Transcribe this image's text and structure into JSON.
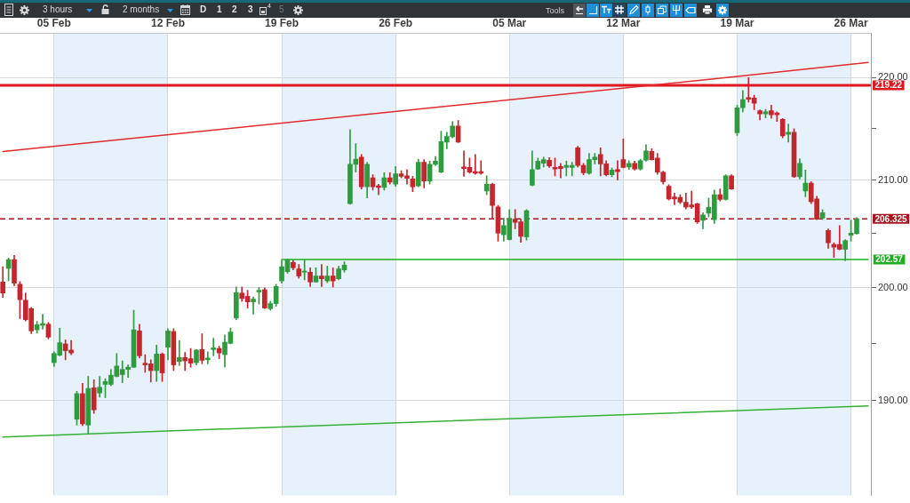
{
  "chart_data": {
    "type": "candlestick",
    "categories": [
      null,
      null,
      null,
      null,
      null,
      null,
      null,
      null,
      null,
      "05 Feb",
      null,
      null,
      null,
      null,
      null,
      null,
      null,
      null,
      null,
      null,
      null,
      null,
      null,
      null,
      null,
      null,
      null,
      null,
      null,
      "12 Feb",
      null,
      null,
      null,
      null,
      null,
      null,
      null,
      null,
      null,
      null,
      null,
      null,
      null,
      null,
      null,
      null,
      null,
      null,
      null,
      "19 Feb",
      null,
      null,
      null,
      null,
      null,
      null,
      null,
      null,
      null,
      null,
      null,
      null,
      null,
      null,
      null,
      null,
      null,
      null,
      null,
      "26 Feb",
      null,
      null,
      null,
      null,
      null,
      null,
      null,
      null,
      null,
      null,
      null,
      null,
      null,
      null,
      null,
      null,
      null,
      null,
      null,
      "05 Mar",
      null,
      null,
      null,
      null,
      null,
      null,
      null,
      null,
      null,
      null,
      null,
      null,
      null,
      null,
      null,
      null,
      null,
      null,
      null,
      "12 Mar",
      null,
      null,
      null,
      null,
      null,
      null,
      null,
      null,
      null,
      null,
      null,
      null,
      null,
      null,
      null,
      null,
      null,
      null,
      null,
      "19 Mar",
      null,
      null,
      null,
      null,
      null,
      null,
      null,
      null,
      null,
      null,
      null,
      null,
      null,
      null,
      null,
      null,
      null,
      null,
      null,
      "26 Mar",
      null,
      null,
      null
    ],
    "ohlc": [
      [
        200.5,
        201.9,
        199.1,
        199.5
      ],
      [
        201.75,
        202.7,
        200.6,
        202.55
      ],
      [
        202.55,
        202.95,
        200.15,
        200.4
      ],
      [
        200.3,
        200.55,
        197.2,
        198.9
      ],
      [
        198.85,
        199.5,
        197.0,
        197.1
      ],
      [
        198.1,
        198.2,
        195.85,
        196.1
      ],
      [
        196.2,
        196.95,
        195.9,
        196.65
      ],
      [
        196.6,
        197.6,
        196.25,
        196.75
      ],
      [
        196.7,
        196.85,
        195.4,
        195.55
      ],
      [
        193.3,
        194.25,
        192.95,
        194.1
      ],
      [
        193.95,
        196.35,
        193.9,
        195.05
      ],
      [
        194.95,
        195.3,
        193.55,
        194.35
      ],
      [
        194.4,
        195.25,
        194.0,
        194.15
      ],
      [
        188.4,
        190.8,
        187.9,
        190.6
      ],
      [
        190.6,
        191.5,
        187.85,
        188.0
      ],
      [
        187.9,
        192.1,
        187.15,
        191.05
      ],
      [
        191.1,
        191.8,
        188.9,
        189.2
      ],
      [
        190.65,
        192.1,
        190.3,
        191.15
      ],
      [
        191.4,
        191.9,
        190.25,
        191.65
      ],
      [
        191.4,
        192.7,
        191.3,
        192.2
      ],
      [
        192.1,
        194.1,
        192.05,
        193.0
      ],
      [
        192.25,
        193.45,
        191.55,
        192.7
      ],
      [
        192.7,
        193.1,
        192.0,
        192.9
      ],
      [
        192.9,
        197.95,
        192.85,
        196.2
      ],
      [
        196.1,
        196.7,
        193.7,
        193.9
      ],
      [
        193.25,
        194.0,
        192.45,
        193.1
      ],
      [
        193.2,
        193.55,
        191.6,
        192.6
      ],
      [
        192.6,
        194.85,
        191.65,
        194.05
      ],
      [
        194.05,
        194.15,
        191.65,
        192.4
      ],
      [
        194.65,
        196.3,
        193.55,
        196.1
      ],
      [
        196.05,
        196.3,
        192.6,
        193.1
      ],
      [
        193.4,
        195.25,
        193.05,
        193.75
      ],
      [
        193.75,
        194.2,
        192.6,
        193.45
      ],
      [
        193.65,
        194.55,
        192.9,
        193.25
      ],
      [
        193.3,
        194.45,
        193.1,
        194.4
      ],
      [
        194.45,
        195.85,
        193.2,
        193.5
      ],
      [
        193.55,
        194.25,
        193.2,
        193.7
      ],
      [
        194.45,
        195.45,
        193.9,
        194.6
      ],
      [
        194.55,
        194.75,
        193.65,
        194.15
      ],
      [
        194.0,
        195.75,
        192.9,
        195.1
      ],
      [
        195.0,
        196.35,
        194.95,
        196.0
      ],
      [
        197.25,
        200.05,
        197.1,
        199.55
      ],
      [
        199.5,
        200.05,
        198.75,
        199.0
      ],
      [
        199.2,
        199.75,
        198.15,
        198.7
      ],
      [
        198.7,
        199.15,
        197.6,
        198.95
      ],
      [
        199.6,
        200.0,
        198.5,
        199.75
      ],
      [
        199.8,
        199.95,
        198.1,
        198.15
      ],
      [
        198.1,
        198.75,
        197.95,
        198.55
      ],
      [
        198.55,
        200.3,
        198.3,
        200.1
      ],
      [
        200.6,
        202.5,
        200.4,
        201.9
      ],
      [
        201.45,
        202.6,
        201.3,
        202.5
      ],
      [
        202.3,
        202.5,
        201.6,
        201.8
      ],
      [
        201.7,
        202.1,
        200.85,
        201.05
      ],
      [
        201.4,
        202.5,
        200.7,
        201.5
      ],
      [
        201.4,
        201.8,
        200.1,
        200.5
      ],
      [
        200.5,
        201.8,
        200.5,
        201.05
      ],
      [
        201.05,
        202.1,
        200.1,
        200.8
      ],
      [
        200.6,
        201.95,
        200.45,
        201.05
      ],
      [
        201.05,
        201.8,
        200.05,
        200.6
      ],
      [
        200.8,
        201.95,
        200.7,
        201.7
      ],
      [
        201.6,
        202.35,
        201.4,
        202.05
      ],
      [
        207.75,
        214.85,
        207.7,
        211.5
      ],
      [
        211.5,
        213.5,
        210.75,
        212.0
      ],
      [
        212.2,
        212.45,
        209.15,
        209.35
      ],
      [
        209.35,
        211.7,
        208.3,
        211.5
      ],
      [
        210.2,
        210.5,
        209.05,
        209.35
      ],
      [
        209.45,
        209.6,
        208.6,
        209.3
      ],
      [
        209.3,
        210.7,
        209.05,
        210.2
      ],
      [
        210.2,
        210.7,
        209.6,
        209.8
      ],
      [
        209.6,
        211.3,
        209.4,
        210.6
      ],
      [
        210.6,
        210.9,
        210.2,
        210.35
      ],
      [
        210.4,
        211.0,
        209.6,
        210.15
      ],
      [
        210.1,
        210.35,
        208.9,
        209.35
      ],
      [
        209.45,
        212.0,
        209.35,
        211.7
      ],
      [
        211.7,
        211.95,
        209.25,
        209.9
      ],
      [
        209.9,
        211.8,
        209.6,
        211.5
      ],
      [
        211.5,
        212.25,
        211.4,
        211.8
      ],
      [
        210.75,
        214.7,
        210.7,
        213.7
      ],
      [
        213.65,
        214.6,
        213.0,
        214.2
      ],
      [
        214.15,
        215.65,
        214.05,
        215.2
      ],
      [
        215.2,
        215.75,
        213.6,
        213.65
      ],
      [
        211.25,
        212.8,
        210.35,
        211.1
      ],
      [
        211.2,
        212.1,
        210.65,
        210.75
      ],
      [
        210.8,
        212.45,
        210.55,
        210.65
      ],
      [
        210.8,
        211.85,
        210.55,
        210.65
      ],
      [
        208.95,
        210.4,
        208.6,
        209.6
      ],
      [
        209.6,
        209.7,
        206.3,
        207.6
      ],
      [
        207.45,
        207.6,
        204.25,
        205.0
      ],
      [
        204.85,
        206.4,
        204.25,
        205.7
      ],
      [
        204.4,
        207.2,
        204.35,
        206.35
      ],
      [
        206.3,
        207.2,
        205.4,
        206.0
      ],
      [
        206.05,
        206.3,
        204.15,
        204.7
      ],
      [
        204.65,
        207.2,
        204.35,
        207.1
      ],
      [
        209.5,
        212.8,
        209.45,
        211.0
      ],
      [
        211.05,
        212.1,
        211.0,
        211.8
      ],
      [
        211.6,
        212.2,
        211.25,
        211.95
      ],
      [
        211.9,
        212.15,
        211.2,
        211.35
      ],
      [
        211.2,
        212.1,
        210.4,
        211.05
      ],
      [
        211.3,
        211.6,
        210.2,
        211.1
      ],
      [
        211.2,
        211.8,
        210.4,
        211.4
      ],
      [
        211.2,
        211.7,
        210.4,
        211.4
      ],
      [
        213.1,
        213.25,
        211.25,
        211.4
      ],
      [
        211.4,
        211.6,
        210.5,
        210.7
      ],
      [
        210.65,
        212.55,
        210.55,
        211.95
      ],
      [
        211.95,
        212.55,
        211.55,
        212.2
      ],
      [
        212.45,
        213.1,
        210.4,
        211.55
      ],
      [
        211.55,
        211.85,
        210.4,
        210.5
      ],
      [
        210.5,
        211.15,
        210.3,
        210.95
      ],
      [
        211.0,
        211.85,
        210.0,
        210.8
      ],
      [
        211.95,
        213.95,
        211.15,
        211.2
      ],
      [
        211.25,
        211.85,
        211.0,
        211.6
      ],
      [
        211.6,
        211.8,
        210.95,
        211.05
      ],
      [
        211.05,
        212.0,
        210.95,
        211.85
      ],
      [
        211.9,
        213.4,
        211.8,
        212.8
      ],
      [
        212.75,
        213.0,
        211.9,
        211.95
      ],
      [
        212.1,
        212.55,
        210.55,
        210.75
      ],
      [
        210.75,
        210.85,
        209.6,
        209.85
      ],
      [
        209.4,
        209.55,
        208.1,
        208.2
      ],
      [
        208.4,
        208.75,
        207.65,
        208.2
      ],
      [
        208.35,
        208.6,
        207.75,
        207.9
      ],
      [
        207.9,
        208.75,
        207.25,
        207.45
      ],
      [
        207.65,
        208.95,
        207.3,
        207.45
      ],
      [
        207.75,
        207.8,
        205.9,
        206.05
      ],
      [
        206.2,
        206.9,
        205.4,
        206.7
      ],
      [
        206.85,
        208.3,
        206.5,
        207.4
      ],
      [
        206.25,
        209.05,
        205.9,
        208.6
      ],
      [
        208.6,
        209.15,
        208.0,
        208.15
      ],
      [
        208.15,
        210.5,
        208.1,
        210.4
      ],
      [
        210.4,
        210.5,
        209.1,
        209.15
      ],
      [
        214.55,
        217.25,
        214.3,
        217.0
      ],
      [
        217.0,
        218.7,
        216.6,
        217.8
      ],
      [
        218.0,
        220.0,
        217.55,
        217.85
      ],
      [
        217.95,
        218.25,
        216.8,
        217.45
      ],
      [
        216.7,
        216.8,
        215.8,
        216.4
      ],
      [
        216.4,
        216.85,
        216.0,
        216.6
      ],
      [
        216.7,
        217.25,
        215.95,
        216.3
      ],
      [
        216.5,
        216.6,
        215.65,
        216.3
      ],
      [
        215.85,
        215.95,
        214.05,
        214.25
      ],
      [
        214.4,
        215.4,
        213.65,
        214.6
      ],
      [
        214.6,
        214.95,
        210.25,
        210.3
      ],
      [
        210.3,
        212.05,
        210.1,
        211.6
      ],
      [
        208.95,
        210.95,
        208.4,
        209.7
      ],
      [
        209.7,
        209.85,
        207.75,
        207.95
      ],
      [
        208.2,
        208.45,
        206.25,
        206.3
      ],
      [
        206.4,
        207.2,
        206.25,
        206.9
      ],
      [
        205.25,
        205.4,
        203.6,
        204.1
      ],
      [
        203.95,
        204.1,
        202.75,
        203.7
      ],
      [
        203.95,
        205.7,
        203.45,
        203.5
      ],
      [
        203.5,
        204.4,
        202.45,
        204.3
      ],
      [
        204.8,
        206.2,
        204.25,
        205.0
      ],
      [
        204.95,
        206.45,
        204.9,
        206.325
      ],
      null,
      null
    ],
    "colors": [
      "#c3262d",
      "#2e9b3f",
      "#c3262d",
      "#c3262d",
      "#c3262d",
      "#c3262d",
      "#2e9b3f",
      "#2e9b3f",
      "#c3262d",
      "#2e9b3f",
      "#2e9b3f",
      "#c3262d",
      "#c3262d",
      "#2e9b3f",
      "#c3262d",
      "#2e9b3f",
      "#c3262d",
      "#2e9b3f",
      "#2e9b3f",
      "#2e9b3f",
      "#2e9b3f",
      "#2e9b3f",
      "#2e9b3f",
      "#2e9b3f",
      "#c3262d",
      "#c3262d",
      "#c3262d",
      "#2e9b3f",
      "#c3262d",
      "#2e9b3f",
      "#c3262d",
      "#2e9b3f",
      "#c3262d",
      "#c3262d",
      "#2e9b3f",
      "#c3262d",
      "#2e9b3f",
      "#2e9b3f",
      "#c3262d",
      "#2e9b3f",
      "#2e9b3f",
      "#2e9b3f",
      "#c3262d",
      "#c3262d",
      "#2e9b3f",
      "#2e9b3f",
      "#c3262d",
      "#2e9b3f",
      "#2e9b3f",
      "#2e9b3f",
      "#2e9b3f",
      "#c3262d",
      "#c3262d",
      "#2e9b3f",
      "#c3262d",
      "#2e9b3f",
      "#c3262d",
      "#2e9b3f",
      "#c3262d",
      "#2e9b3f",
      "#2e9b3f",
      "#2e9b3f",
      "#2e9b3f",
      "#c3262d",
      "#2e9b3f",
      "#c3262d",
      "#c3262d",
      "#2e9b3f",
      "#c3262d",
      "#2e9b3f",
      "#c3262d",
      "#c3262d",
      "#c3262d",
      "#2e9b3f",
      "#c3262d",
      "#2e9b3f",
      "#2e9b3f",
      "#2e9b3f",
      "#2e9b3f",
      "#2e9b3f",
      "#c3262d",
      "#c3262d",
      "#c3262d",
      "#c3262d",
      "#c3262d",
      "#2e9b3f",
      "#c3262d",
      "#c3262d",
      "#2e9b3f",
      "#2e9b3f",
      "#c3262d",
      "#c3262d",
      "#2e9b3f",
      "#2e9b3f",
      "#2e9b3f",
      "#2e9b3f",
      "#c3262d",
      "#c3262d",
      "#c3262d",
      "#2e9b3f",
      "#2e9b3f",
      "#c3262d",
      "#c3262d",
      "#2e9b3f",
      "#2e9b3f",
      "#c3262d",
      "#c3262d",
      "#2e9b3f",
      "#c3262d",
      "#c3262d",
      "#2e9b3f",
      "#c3262d",
      "#2e9b3f",
      "#2e9b3f",
      "#c3262d",
      "#c3262d",
      "#c3262d",
      "#c3262d",
      "#c3262d",
      "#c3262d",
      "#c3262d",
      "#c3262d",
      "#c3262d",
      "#2e9b3f",
      "#2e9b3f",
      "#2e9b3f",
      "#c3262d",
      "#2e9b3f",
      "#c3262d",
      "#2e9b3f",
      "#2e9b3f",
      "#c3262d",
      "#c3262d",
      "#c3262d",
      "#2e9b3f",
      "#c3262d",
      "#c3262d",
      "#c3262d",
      "#2e9b3f",
      "#c3262d",
      "#2e9b3f",
      "#2e9b3f",
      "#c3262d",
      "#c3262d",
      "#2e9b3f",
      "#c3262d",
      "#c3262d",
      "#c3262d",
      "#2e9b3f",
      "#2e9b3f",
      "#2e9b3f",
      null,
      null
    ],
    "series": [
      {
        "type": "line",
        "color": "#e32b2b",
        "values": [
          212.73,
          null,
          null,
          null,
          null,
          null,
          null,
          null,
          null,
          null,
          null,
          null,
          null,
          null,
          null,
          null,
          null,
          null,
          null,
          null,
          null,
          null,
          null,
          null,
          null,
          null,
          null,
          null,
          null,
          null,
          null,
          null,
          null,
          null,
          null,
          null,
          null,
          null,
          null,
          null,
          null,
          null,
          null,
          null,
          null,
          null,
          null,
          null,
          null,
          null,
          null,
          null,
          null,
          null,
          null,
          null,
          null,
          null,
          null,
          null,
          null,
          null,
          null,
          null,
          null,
          null,
          null,
          null,
          null,
          null,
          null,
          null,
          null,
          null,
          null,
          null,
          null,
          null,
          null,
          null,
          null,
          null,
          null,
          null,
          null,
          null,
          null,
          null,
          null,
          null,
          null,
          null,
          null,
          null,
          null,
          null,
          null,
          null,
          null,
          null,
          null,
          null,
          null,
          null,
          null,
          null,
          null,
          null,
          null,
          null,
          null,
          null,
          null,
          null,
          null,
          null,
          null,
          null,
          null,
          null,
          null,
          null,
          null,
          null,
          null,
          null,
          null,
          null,
          null,
          220.1,
          null,
          null,
          null,
          null,
          null,
          null,
          null,
          null,
          null,
          null,
          null,
          null,
          null,
          null,
          null,
          null,
          null,
          null,
          null,
          null,
          null,
          null,
          221.5
        ]
      },
      {
        "type": "line",
        "color": "#33b233",
        "values": [
          186.88,
          null,
          null,
          null,
          null,
          null,
          null,
          null,
          null,
          null,
          null,
          null,
          null,
          null,
          null,
          187.15,
          null,
          null,
          null,
          null,
          null,
          null,
          null,
          null,
          null,
          null,
          null,
          null,
          null,
          null,
          null,
          null,
          null,
          null,
          null,
          null,
          null,
          null,
          null,
          null,
          null,
          null,
          null,
          null,
          null,
          null,
          null,
          null,
          null,
          null,
          null,
          null,
          null,
          null,
          null,
          null,
          null,
          null,
          null,
          null,
          null,
          null,
          null,
          null,
          null,
          null,
          null,
          null,
          null,
          null,
          null,
          null,
          null,
          null,
          null,
          null,
          null,
          null,
          null,
          null,
          null,
          null,
          null,
          null,
          null,
          null,
          null,
          null,
          null,
          null,
          null,
          null,
          null,
          null,
          null,
          null,
          null,
          null,
          null,
          null,
          null,
          null,
          null,
          null,
          null,
          null,
          null,
          null,
          null,
          null,
          null,
          null,
          null,
          null,
          null,
          null,
          null,
          null,
          null,
          null,
          null,
          null,
          null,
          null,
          null,
          null,
          null,
          null,
          null,
          null,
          null,
          null,
          null,
          null,
          null,
          null,
          null,
          null,
          null,
          null,
          null,
          null,
          null,
          null,
          null,
          null,
          null,
          null,
          null,
          null,
          null,
          null,
          189.53
        ]
      },
      {
        "type": "line",
        "color": "#1fae1f",
        "values": [
          null,
          null,
          null,
          null,
          null,
          null,
          null,
          null,
          null,
          null,
          null,
          null,
          null,
          null,
          null,
          null,
          null,
          null,
          null,
          null,
          null,
          null,
          null,
          null,
          null,
          null,
          null,
          null,
          null,
          null,
          null,
          null,
          null,
          null,
          null,
          null,
          null,
          null,
          null,
          null,
          null,
          null,
          null,
          null,
          null,
          null,
          null,
          null,
          null,
          202.57,
          null,
          null,
          null,
          null,
          null,
          null,
          null,
          null,
          null,
          null,
          null,
          null,
          null,
          null,
          null,
          null,
          null,
          null,
          null,
          null,
          null,
          null,
          null,
          null,
          null,
          null,
          null,
          null,
          null,
          null,
          null,
          null,
          null,
          null,
          null,
          null,
          null,
          null,
          null,
          null,
          null,
          null,
          null,
          null,
          null,
          null,
          null,
          null,
          null,
          null,
          null,
          null,
          null,
          null,
          null,
          null,
          null,
          null,
          null,
          null,
          null,
          null,
          null,
          null,
          null,
          null,
          null,
          null,
          null,
          null,
          null,
          null,
          null,
          null,
          null,
          null,
          null,
          null,
          null,
          null,
          null,
          null,
          null,
          null,
          null,
          null,
          null,
          null,
          null,
          null,
          null,
          null,
          null,
          null,
          null,
          null,
          null,
          null,
          null,
          null,
          null,
          null,
          202.57
        ],
        "value_labels": [
          null,
          null,
          null,
          null,
          null,
          null,
          null,
          null,
          null,
          null,
          null,
          null,
          null,
          null,
          null,
          null,
          null,
          null,
          null,
          null,
          null,
          null,
          null,
          null,
          null,
          null,
          null,
          null,
          null,
          null,
          null,
          null,
          null,
          null,
          null,
          null,
          null,
          null,
          null,
          null,
          null,
          null,
          null,
          null,
          null,
          null,
          null,
          null,
          null,
          null,
          null,
          null,
          null,
          null,
          null,
          null,
          null,
          null,
          null,
          null,
          null,
          null,
          null,
          null,
          null,
          null,
          null,
          null,
          null,
          null,
          null,
          null,
          null,
          null,
          null,
          null,
          null,
          null,
          null,
          null,
          null,
          null,
          null,
          null,
          null,
          null,
          null,
          null,
          null,
          null,
          null,
          null,
          null,
          null,
          null,
          null,
          null,
          null,
          null,
          null,
          null,
          null,
          null,
          null,
          null,
          null,
          null,
          null,
          null,
          null,
          null,
          null,
          null,
          null,
          null,
          null,
          null,
          null,
          null,
          null,
          null,
          null,
          null,
          null,
          null,
          null,
          null,
          null,
          null,
          null,
          null,
          null,
          null,
          null,
          null,
          null,
          null,
          null,
          null,
          null,
          null,
          null,
          null,
          null,
          null,
          null,
          null,
          null,
          null,
          null,
          null,
          null,
          "202.57"
        ]
      }
    ],
    "ylim": [
      182,
      224.5
    ],
    "yticks": [
      {
        "value": 190,
        "label": "190.00"
      },
      {
        "value": 195,
        "label": null
      },
      {
        "value": 200,
        "label": "200.00"
      },
      {
        "value": 205,
        "label": null
      },
      {
        "value": 210,
        "label": "210.00"
      },
      {
        "value": 215,
        "label": null
      },
      {
        "value": 220,
        "label": "220.00"
      }
    ],
    "log": true,
    "grid": true,
    "ref_lines": [
      {
        "axis": "y",
        "value": 219.22,
        "label": "219.22",
        "color": "#e0171f"
      },
      {
        "axis": "y",
        "value": 206.325,
        "label": "206.325",
        "color": "#a8141c",
        "line_style": "dashed"
      }
    ],
    "bands": [
      {
        "axis": "x",
        "from": "05 Feb",
        "to": "12 Feb",
        "color": "#e6f1fb"
      },
      {
        "axis": "x",
        "from": "19 Feb",
        "to": "26 Feb",
        "color": "#e6f1fb"
      },
      {
        "axis": "x",
        "from": "05 Mar",
        "to": "12 Mar",
        "color": "#e6f1fb"
      },
      {
        "axis": "x",
        "from": "19 Mar",
        "to": "26 Mar",
        "color": "#e6f1fb"
      }
    ],
    "annotations": [
      "3 hours",
      "2 months",
      "D",
      "1",
      "2",
      "3",
      "4",
      "5",
      "Tools"
    ]
  }
}
